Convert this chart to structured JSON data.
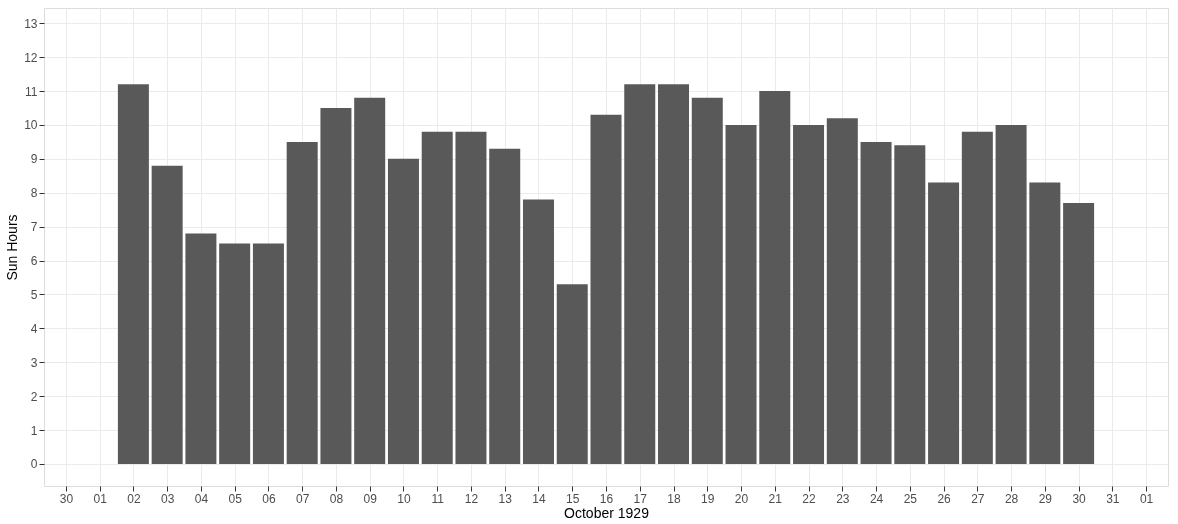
{
  "chart_data": {
    "type": "bar",
    "xlabel": "October 1929",
    "ylabel": "Sun Hours",
    "x": [
      "1929-10-02",
      "1929-10-03",
      "1929-10-04",
      "1929-10-05",
      "1929-10-06",
      "1929-10-07",
      "1929-10-08",
      "1929-10-09",
      "1929-10-10",
      "1929-10-11",
      "1929-10-12",
      "1929-10-13",
      "1929-10-14",
      "1929-10-15",
      "1929-10-16",
      "1929-10-17",
      "1929-10-18",
      "1929-10-19",
      "1929-10-20",
      "1929-10-21",
      "1929-10-22",
      "1929-10-23",
      "1929-10-24",
      "1929-10-25",
      "1929-10-26",
      "1929-10-27",
      "1929-10-28",
      "1929-10-29",
      "1929-10-30"
    ],
    "values": [
      11.2,
      8.8,
      6.8,
      6.5,
      6.5,
      9.5,
      10.5,
      10.8,
      9.0,
      9.8,
      9.8,
      9.3,
      7.8,
      5.3,
      10.3,
      11.2,
      11.2,
      10.8,
      10.0,
      11.0,
      10.0,
      10.2,
      9.5,
      9.4,
      8.3,
      9.8,
      10.0,
      8.3,
      7.7
    ],
    "color": "#595959",
    "xlim": [
      "1929-09-29T12:00",
      "1929-11-01T12:00"
    ],
    "xticks": [
      {
        "value": "1929-09-30",
        "label": "30"
      },
      {
        "value": "1929-10-01",
        "label": "01"
      },
      {
        "value": "1929-10-02",
        "label": "02"
      },
      {
        "value": "1929-10-03",
        "label": "03"
      },
      {
        "value": "1929-10-04",
        "label": "04"
      },
      {
        "value": "1929-10-05",
        "label": "05"
      },
      {
        "value": "1929-10-06",
        "label": "06"
      },
      {
        "value": "1929-10-07",
        "label": "07"
      },
      {
        "value": "1929-10-08",
        "label": "08"
      },
      {
        "value": "1929-10-09",
        "label": "09"
      },
      {
        "value": "1929-10-10",
        "label": "10"
      },
      {
        "value": "1929-10-11",
        "label": "11"
      },
      {
        "value": "1929-10-12",
        "label": "12"
      },
      {
        "value": "1929-10-13",
        "label": "13"
      },
      {
        "value": "1929-10-14",
        "label": "14"
      },
      {
        "value": "1929-10-15",
        "label": "15"
      },
      {
        "value": "1929-10-16",
        "label": "16"
      },
      {
        "value": "1929-10-17",
        "label": "17"
      },
      {
        "value": "1929-10-18",
        "label": "18"
      },
      {
        "value": "1929-10-19",
        "label": "19"
      },
      {
        "value": "1929-10-20",
        "label": "20"
      },
      {
        "value": "1929-10-21",
        "label": "21"
      },
      {
        "value": "1929-10-22",
        "label": "22"
      },
      {
        "value": "1929-10-23",
        "label": "23"
      },
      {
        "value": "1929-10-24",
        "label": "24"
      },
      {
        "value": "1929-10-25",
        "label": "25"
      },
      {
        "value": "1929-10-26",
        "label": "26"
      },
      {
        "value": "1929-10-27",
        "label": "27"
      },
      {
        "value": "1929-10-28",
        "label": "28"
      },
      {
        "value": "1929-10-29",
        "label": "29"
      },
      {
        "value": "1929-10-30",
        "label": "30"
      },
      {
        "value": "1929-10-31",
        "label": "31"
      },
      {
        "value": "1929-11-01",
        "label": "01"
      }
    ],
    "ylim": [
      -0.65,
      13.45
    ],
    "yticks": [
      0,
      1,
      2,
      3,
      4,
      5,
      6,
      7,
      8,
      9,
      10,
      11,
      12,
      13
    ],
    "grid": true
  }
}
